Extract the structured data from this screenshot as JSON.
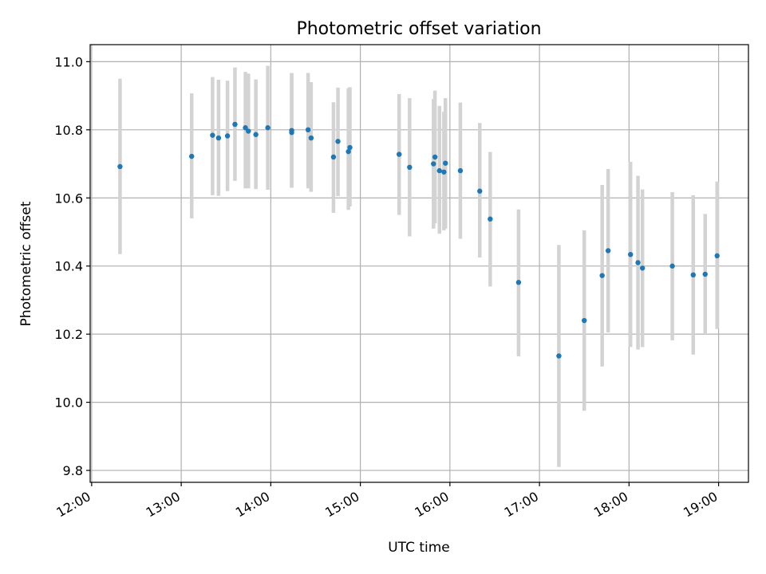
{
  "chart_data": {
    "type": "scatter",
    "title": "Photometric offset variation",
    "xlabel": "UTC time",
    "ylabel": "Photometric offset",
    "grid": true,
    "xlim": [
      "11:59",
      "19:20"
    ],
    "ylim": [
      9.765,
      11.05
    ],
    "xticks": [
      "12:00",
      "13:00",
      "14:00",
      "15:00",
      "16:00",
      "17:00",
      "18:00",
      "19:00"
    ],
    "yticks": [
      "9.8",
      "10.0",
      "10.2",
      "10.4",
      "10.6",
      "10.8",
      "11.0"
    ],
    "errorbar_color": "#d3d3d3",
    "marker_color": "#1f77b4",
    "points": [
      {
        "t": "12:19",
        "y": 10.692,
        "lo": 10.435,
        "hi": 10.95
      },
      {
        "t": "13:07",
        "y": 10.722,
        "lo": 10.54,
        "hi": 10.907
      },
      {
        "t": "13:21",
        "y": 10.784,
        "lo": 10.608,
        "hi": 10.955
      },
      {
        "t": "13:25",
        "y": 10.776,
        "lo": 10.606,
        "hi": 10.947
      },
      {
        "t": "13:31",
        "y": 10.782,
        "lo": 10.62,
        "hi": 10.944
      },
      {
        "t": "13:36",
        "y": 10.816,
        "lo": 10.65,
        "hi": 10.983
      },
      {
        "t": "13:43",
        "y": 10.806,
        "lo": 10.628,
        "hi": 10.97
      },
      {
        "t": "13:45",
        "y": 10.796,
        "lo": 10.628,
        "hi": 10.965
      },
      {
        "t": "13:50",
        "y": 10.786,
        "lo": 10.626,
        "hi": 10.948
      },
      {
        "t": "13:58",
        "y": 10.806,
        "lo": 10.624,
        "hi": 10.988
      },
      {
        "t": "14:14",
        "y": 10.798,
        "lo": 10.63,
        "hi": 10.967
      },
      {
        "t": "14:14",
        "y": 10.792,
        "lo": 10.63,
        "hi": 10.967
      },
      {
        "t": "14:25",
        "y": 10.8,
        "lo": 10.628,
        "hi": 10.967
      },
      {
        "t": "14:27",
        "y": 10.776,
        "lo": 10.618,
        "hi": 10.94
      },
      {
        "t": "14:42",
        "y": 10.72,
        "lo": 10.556,
        "hi": 10.881
      },
      {
        "t": "14:45",
        "y": 10.766,
        "lo": 10.605,
        "hi": 10.924
      },
      {
        "t": "14:52",
        "y": 10.736,
        "lo": 10.565,
        "hi": 10.922
      },
      {
        "t": "14:53",
        "y": 10.748,
        "lo": 10.575,
        "hi": 10.925
      },
      {
        "t": "15:26",
        "y": 10.728,
        "lo": 10.55,
        "hi": 10.905
      },
      {
        "t": "15:33",
        "y": 10.69,
        "lo": 10.487,
        "hi": 10.893
      },
      {
        "t": "15:49",
        "y": 10.7,
        "lo": 10.51,
        "hi": 10.89
      },
      {
        "t": "15:50",
        "y": 10.72,
        "lo": 10.525,
        "hi": 10.915
      },
      {
        "t": "15:53",
        "y": 10.68,
        "lo": 10.495,
        "hi": 10.87
      },
      {
        "t": "15:56",
        "y": 10.676,
        "lo": 10.505,
        "hi": 10.853
      },
      {
        "t": "15:57",
        "y": 10.702,
        "lo": 10.51,
        "hi": 10.893
      },
      {
        "t": "16:07",
        "y": 10.68,
        "lo": 10.48,
        "hi": 10.88
      },
      {
        "t": "16:20",
        "y": 10.62,
        "lo": 10.425,
        "hi": 10.82
      },
      {
        "t": "16:27",
        "y": 10.538,
        "lo": 10.34,
        "hi": 10.735
      },
      {
        "t": "16:46",
        "y": 10.352,
        "lo": 10.135,
        "hi": 10.566
      },
      {
        "t": "17:13",
        "y": 10.136,
        "lo": 9.81,
        "hi": 10.462
      },
      {
        "t": "17:30",
        "y": 10.24,
        "lo": 9.975,
        "hi": 10.505
      },
      {
        "t": "17:42",
        "y": 10.372,
        "lo": 10.105,
        "hi": 10.638
      },
      {
        "t": "17:46",
        "y": 10.445,
        "lo": 10.205,
        "hi": 10.685
      },
      {
        "t": "18:01",
        "y": 10.434,
        "lo": 10.162,
        "hi": 10.706
      },
      {
        "t": "18:06",
        "y": 10.41,
        "lo": 10.155,
        "hi": 10.665
      },
      {
        "t": "18:09",
        "y": 10.394,
        "lo": 10.162,
        "hi": 10.625
      },
      {
        "t": "18:29",
        "y": 10.4,
        "lo": 10.182,
        "hi": 10.617
      },
      {
        "t": "18:43",
        "y": 10.374,
        "lo": 10.14,
        "hi": 10.608
      },
      {
        "t": "18:51",
        "y": 10.376,
        "lo": 10.2,
        "hi": 10.553
      },
      {
        "t": "18:59",
        "y": 10.43,
        "lo": 10.215,
        "hi": 10.648
      }
    ]
  }
}
